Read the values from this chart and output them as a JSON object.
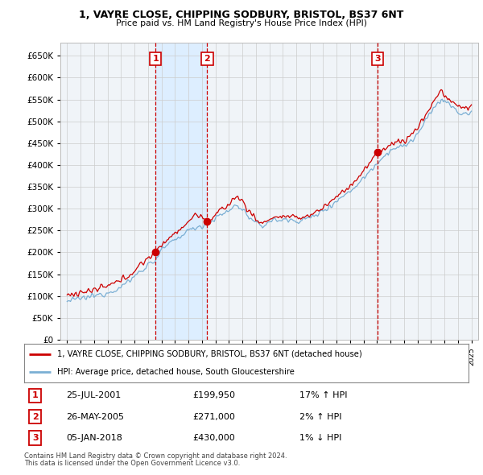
{
  "title": "1, VAYRE CLOSE, CHIPPING SODBURY, BRISTOL, BS37 6NT",
  "subtitle": "Price paid vs. HM Land Registry's House Price Index (HPI)",
  "red_label": "1, VAYRE CLOSE, CHIPPING SODBURY, BRISTOL, BS37 6NT (detached house)",
  "blue_label": "HPI: Average price, detached house, South Gloucestershire",
  "sale_points": [
    {
      "num": 1,
      "year": 2001.56,
      "price": 199950,
      "date": "25-JUL-2001",
      "price_str": "£199,950",
      "pct": "17%",
      "dir": "↑"
    },
    {
      "num": 2,
      "year": 2005.4,
      "price": 271000,
      "date": "26-MAY-2005",
      "price_str": "£271,000",
      "pct": "2%",
      "dir": "↑"
    },
    {
      "num": 3,
      "year": 2018.02,
      "price": 430000,
      "date": "05-JAN-2018",
      "price_str": "£430,000",
      "pct": "1%",
      "dir": "↓"
    }
  ],
  "footnote1": "Contains HM Land Registry data © Crown copyright and database right 2024.",
  "footnote2": "This data is licensed under the Open Government Licence v3.0.",
  "ylim": [
    0,
    680000
  ],
  "yticks": [
    0,
    50000,
    100000,
    150000,
    200000,
    250000,
    300000,
    350000,
    400000,
    450000,
    500000,
    550000,
    600000,
    650000
  ],
  "xlim_start": 1994.5,
  "xlim_end": 2025.5,
  "red_color": "#cc0000",
  "blue_color": "#7bafd4",
  "shade_color": "#ddeeff",
  "vline_color": "#cc0000",
  "grid_color": "#cccccc",
  "background_color": "#f0f4f8"
}
